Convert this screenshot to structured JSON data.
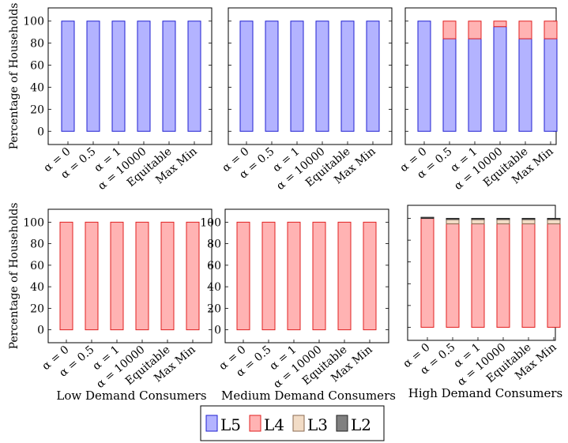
{
  "chart_data": [
    {
      "type": "bar",
      "stacked": true,
      "title": "",
      "xlabel": "",
      "ylabel": "Percentage of Households",
      "ylim": [
        -12,
        112
      ],
      "yticks": [
        0,
        20,
        40,
        60,
        80,
        100
      ],
      "categories": [
        "α = 0",
        "α = 0.5",
        "α = 1",
        "α = 10000",
        "Equitable",
        "Max Min"
      ],
      "series": [
        {
          "name": "L5",
          "values": [
            100,
            100,
            100,
            100,
            100,
            100
          ]
        },
        {
          "name": "L4",
          "values": [
            0,
            0,
            0,
            0,
            0,
            0
          ]
        },
        {
          "name": "L3",
          "values": [
            0,
            0,
            0,
            0,
            0,
            0
          ]
        },
        {
          "name": "L2",
          "values": [
            0,
            0,
            0,
            0,
            0,
            0
          ]
        }
      ]
    },
    {
      "type": "bar",
      "stacked": true,
      "title": "",
      "xlabel": "",
      "ylabel": "",
      "ylim": [
        -12,
        112
      ],
      "categories": [
        "α = 0",
        "α = 0.5",
        "α = 1",
        "α = 10000",
        "Equitable",
        "Max Min"
      ],
      "series": [
        {
          "name": "L5",
          "values": [
            100,
            100,
            100,
            100,
            100,
            100
          ]
        },
        {
          "name": "L4",
          "values": [
            0,
            0,
            0,
            0,
            0,
            0
          ]
        },
        {
          "name": "L3",
          "values": [
            0,
            0,
            0,
            0,
            0,
            0
          ]
        },
        {
          "name": "L2",
          "values": [
            0,
            0,
            0,
            0,
            0,
            0
          ]
        }
      ]
    },
    {
      "type": "bar",
      "stacked": true,
      "title": "",
      "xlabel": "",
      "ylabel": "",
      "ylim": [
        -12,
        112
      ],
      "categories": [
        "α = 0",
        "α = 0.5",
        "α = 1",
        "α = 10000",
        "Equitable",
        "Max Min"
      ],
      "series": [
        {
          "name": "L5",
          "values": [
            100,
            84,
            84,
            95,
            84,
            84
          ]
        },
        {
          "name": "L4",
          "values": [
            0,
            16,
            16,
            5,
            16,
            16
          ]
        },
        {
          "name": "L3",
          "values": [
            0,
            0,
            0,
            0,
            0,
            0
          ]
        },
        {
          "name": "L2",
          "values": [
            0,
            0,
            0,
            0,
            0,
            0
          ]
        }
      ]
    },
    {
      "type": "bar",
      "stacked": true,
      "title": "",
      "xlabel": "Low Demand Consumers",
      "ylabel": "Percentage of Households",
      "ylim": [
        -12,
        112
      ],
      "yticks": [
        0,
        20,
        40,
        60,
        80,
        100
      ],
      "categories": [
        "α = 0",
        "α = 0.5",
        "α = 1",
        "α = 10000",
        "Equitable",
        "Max Min"
      ],
      "series": [
        {
          "name": "L5",
          "values": [
            0,
            0,
            0,
            0,
            0,
            0
          ]
        },
        {
          "name": "L4",
          "values": [
            100,
            100,
            100,
            100,
            100,
            100
          ]
        },
        {
          "name": "L3",
          "values": [
            0,
            0,
            0,
            0,
            0,
            0
          ]
        },
        {
          "name": "L2",
          "values": [
            0,
            0,
            0,
            0,
            0,
            0
          ]
        }
      ]
    },
    {
      "type": "bar",
      "stacked": true,
      "title": "",
      "xlabel": "Medium Demand Consumers",
      "ylabel": "",
      "ylim": [
        -12,
        112
      ],
      "yticks": [
        0,
        20,
        40,
        60,
        80,
        100
      ],
      "categories": [
        "α = 0",
        "α = 0.5",
        "α = 1",
        "α = 10000",
        "Equitable",
        "Max Min"
      ],
      "series": [
        {
          "name": "L5",
          "values": [
            0,
            0,
            0,
            0,
            0,
            0
          ]
        },
        {
          "name": "L4",
          "values": [
            100,
            100,
            100,
            100,
            100,
            100
          ]
        },
        {
          "name": "L3",
          "values": [
            0,
            0,
            0,
            0,
            0,
            0
          ]
        },
        {
          "name": "L2",
          "values": [
            0,
            0,
            0,
            0,
            0,
            0
          ]
        }
      ]
    },
    {
      "type": "bar",
      "stacked": true,
      "title": "",
      "xlabel": "High Demand Consumers",
      "ylabel": "",
      "ylim": [
        -12,
        112
      ],
      "categories": [
        "α = 0",
        "α = 0.5",
        "α = 1",
        "α = 10000",
        "Equitable",
        "Max Min"
      ],
      "series": [
        {
          "name": "L5",
          "values": [
            0,
            0,
            0,
            0,
            0,
            0
          ]
        },
        {
          "name": "L4",
          "values": [
            100,
            95,
            95,
            95,
            95,
            95
          ]
        },
        {
          "name": "L3",
          "values": [
            0,
            4,
            4,
            4,
            4,
            4
          ]
        },
        {
          "name": "L2",
          "values": [
            1,
            1,
            1,
            1,
            1,
            1
          ]
        }
      ]
    }
  ],
  "legend": {
    "placement": "bottom-center",
    "items": [
      {
        "label": "L5",
        "fill": "#b3b3ff",
        "stroke": "#2020d0"
      },
      {
        "label": "L4",
        "fill": "#ffb3b3",
        "stroke": "#e02020"
      },
      {
        "label": "L3",
        "fill": "#f2dcc6",
        "stroke": "#8a6a50"
      },
      {
        "label": "L2",
        "fill": "#808080",
        "stroke": "#202020"
      }
    ]
  },
  "colors": {
    "L5": {
      "fill": "#b3b3ff",
      "stroke": "#2020d0"
    },
    "L4": {
      "fill": "#ffb3b3",
      "stroke": "#e02020"
    },
    "L3": {
      "fill": "#f2dcc6",
      "stroke": "#8a6a50"
    },
    "L2": {
      "fill": "#808080",
      "stroke": "#202020"
    }
  }
}
